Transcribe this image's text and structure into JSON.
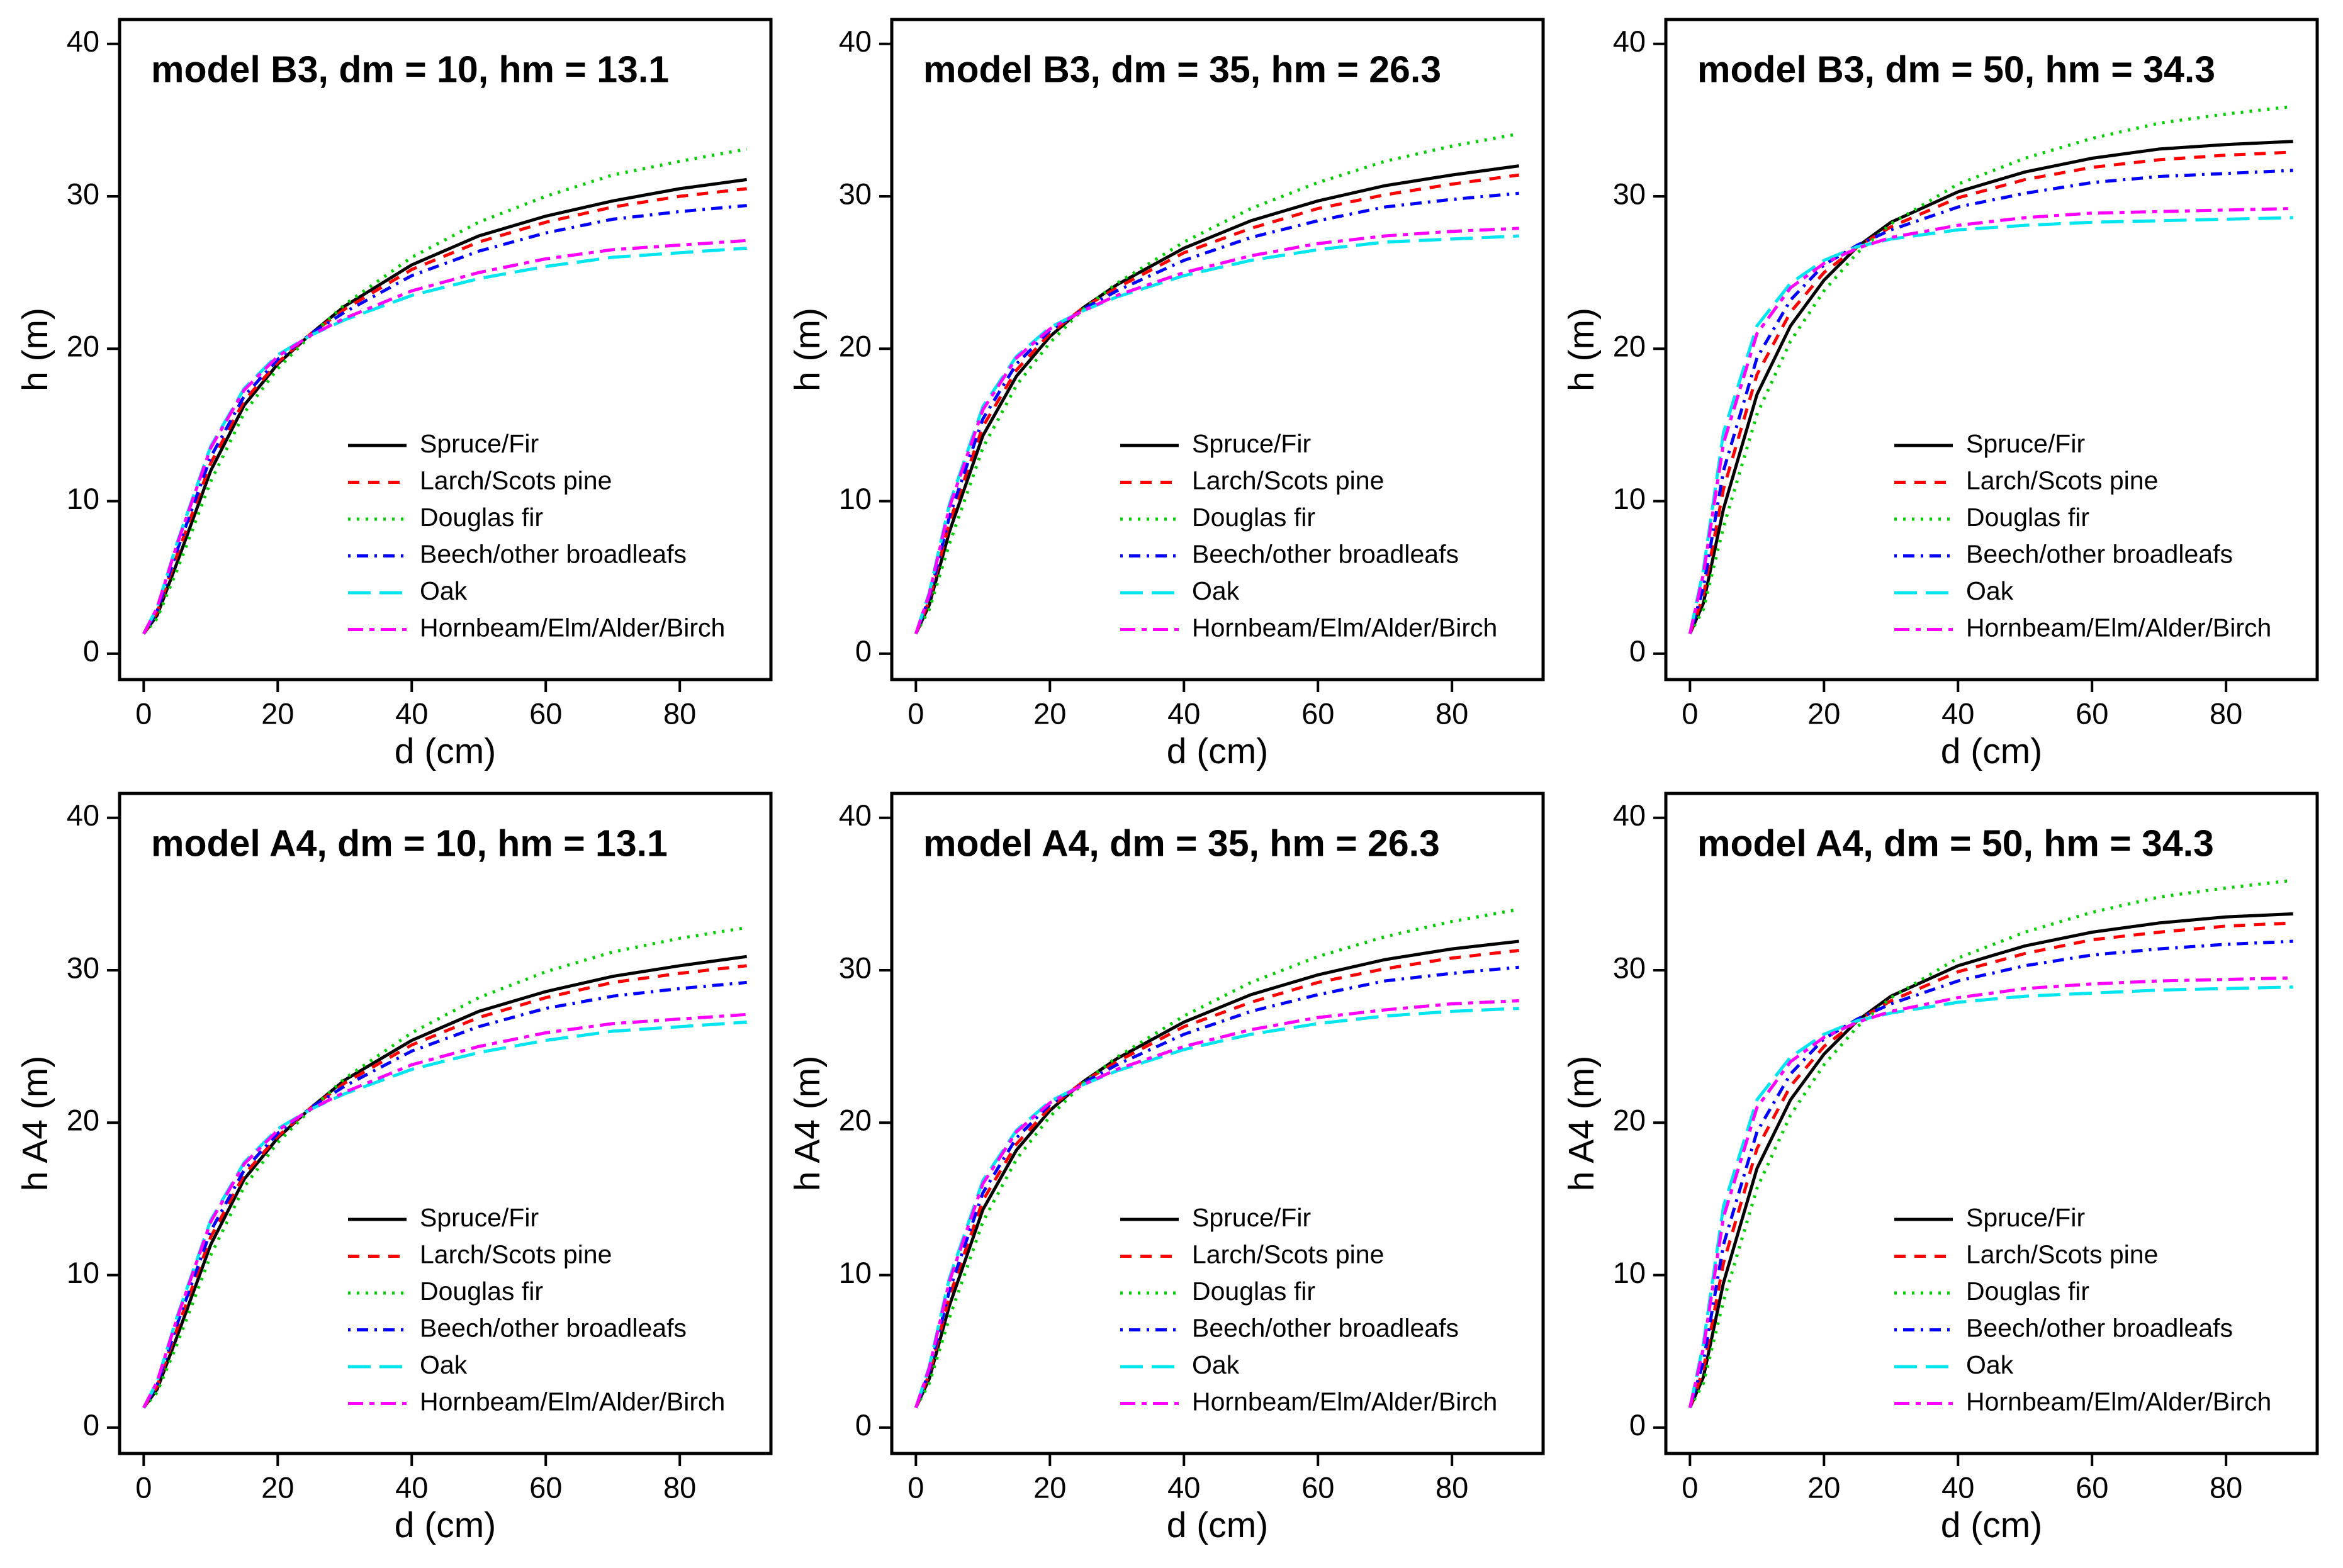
{
  "chart_data": [
    {
      "type": "line",
      "title": "model B3, dm = 10, hm = 13.1",
      "x_label": "d (cm)",
      "y_label": "h (m)",
      "x": [
        0,
        2,
        5,
        10,
        15,
        20,
        25,
        30,
        40,
        50,
        60,
        70,
        80,
        90
      ],
      "xlim": [
        -3.6,
        93.6
      ],
      "ylim": [
        -1.7,
        41.6
      ],
      "xticks": [
        0,
        20,
        40,
        60,
        80
      ],
      "yticks": [
        0,
        10,
        20,
        30,
        40
      ],
      "legend": "lower right",
      "series": [
        {
          "name": "Spruce/Fir",
          "color": "#000000",
          "dash": "solid",
          "values": [
            1.3,
            2.5,
            6,
            12,
            16.3,
            19.0,
            21.0,
            22.8,
            25.5,
            27.4,
            28.7,
            29.7,
            30.5,
            31.1
          ]
        },
        {
          "name": "Larch/Scots pine",
          "color": "#ff0000",
          "dash": "dashed",
          "values": [
            1.3,
            2.7,
            6.5,
            12.5,
            16.6,
            19.1,
            21.0,
            22.6,
            25.2,
            27.0,
            28.3,
            29.3,
            30.0,
            30.5
          ]
        },
        {
          "name": "Douglas fir",
          "color": "#00cd00",
          "dash": "dotted",
          "values": [
            1.3,
            2.3,
            5.5,
            11.3,
            15.8,
            18.7,
            20.9,
            22.9,
            26.0,
            28.3,
            30.0,
            31.4,
            32.3,
            33.1
          ]
        },
        {
          "name": "Beech/other broadleafs",
          "color": "#0000ff",
          "dash": "dotdash",
          "values": [
            1.3,
            2.8,
            6.8,
            12.9,
            16.9,
            19.3,
            21.0,
            22.4,
            24.8,
            26.4,
            27.6,
            28.5,
            29.0,
            29.4
          ]
        },
        {
          "name": "Oak",
          "color": "#00e5ee",
          "dash": "longdash",
          "values": [
            1.3,
            3.0,
            7.3,
            13.6,
            17.4,
            19.6,
            20.9,
            21.9,
            23.5,
            24.6,
            25.4,
            26.0,
            26.3,
            26.6
          ]
        },
        {
          "name": "Hornbeam/Elm/Alder/Birch",
          "color": "#ff00ff",
          "dash": "twodash",
          "values": [
            1.3,
            3.0,
            7.2,
            13.5,
            17.3,
            19.5,
            20.9,
            22.0,
            23.8,
            25.0,
            25.9,
            26.5,
            26.8,
            27.1
          ]
        }
      ]
    },
    {
      "type": "line",
      "title": "model B3, dm = 35, hm = 26.3",
      "x_label": "d (cm)",
      "y_label": "h (m)",
      "x": [
        0,
        2,
        5,
        10,
        15,
        20,
        25,
        30,
        40,
        50,
        60,
        70,
        80,
        90
      ],
      "xlim": [
        -3.6,
        93.6
      ],
      "ylim": [
        -1.7,
        41.6
      ],
      "xticks": [
        0,
        20,
        40,
        60,
        80
      ],
      "yticks": [
        0,
        10,
        20,
        30,
        40
      ],
      "legend": "lower right",
      "series": [
        {
          "name": "Spruce/Fir",
          "color": "#000000",
          "dash": "solid",
          "values": [
            1.3,
            3.2,
            8,
            14.3,
            18.2,
            20.8,
            22.7,
            24.2,
            26.6,
            28.4,
            29.7,
            30.7,
            31.4,
            32.0
          ]
        },
        {
          "name": "Larch/Scots pine",
          "color": "#ff0000",
          "dash": "dashed",
          "values": [
            1.3,
            3.5,
            8.6,
            14.9,
            18.6,
            21.0,
            22.7,
            24.0,
            26.3,
            27.9,
            29.2,
            30.1,
            30.8,
            31.4
          ]
        },
        {
          "name": "Douglas fir",
          "color": "#00cd00",
          "dash": "dotted",
          "values": [
            1.3,
            2.9,
            7.2,
            13.5,
            17.6,
            20.4,
            22.6,
            24.3,
            27.0,
            29.2,
            30.9,
            32.3,
            33.3,
            34.1
          ]
        },
        {
          "name": "Beech/other broadleafs",
          "color": "#0000ff",
          "dash": "dotdash",
          "values": [
            1.3,
            3.7,
            9.0,
            15.4,
            19.0,
            21.2,
            22.6,
            23.8,
            25.8,
            27.3,
            28.4,
            29.3,
            29.8,
            30.2
          ]
        },
        {
          "name": "Oak",
          "color": "#00e5ee",
          "dash": "longdash",
          "values": [
            1.3,
            4.0,
            9.8,
            16.2,
            19.5,
            21.4,
            22.5,
            23.4,
            24.8,
            25.8,
            26.5,
            27.0,
            27.2,
            27.4
          ]
        },
        {
          "name": "Hornbeam/Elm/Alder/Birch",
          "color": "#ff00ff",
          "dash": "twodash",
          "values": [
            1.3,
            3.9,
            9.6,
            16.0,
            19.4,
            21.3,
            22.5,
            23.5,
            25.0,
            26.1,
            26.9,
            27.4,
            27.7,
            27.9
          ]
        }
      ]
    },
    {
      "type": "line",
      "title": "model B3, dm = 50, hm = 34.3",
      "x_label": "d (cm)",
      "y_label": "h (m)",
      "x": [
        0,
        2,
        5,
        10,
        15,
        20,
        25,
        30,
        40,
        50,
        60,
        70,
        80,
        90
      ],
      "xlim": [
        -3.6,
        93.6
      ],
      "ylim": [
        -1.7,
        41.6
      ],
      "xticks": [
        0,
        20,
        40,
        60,
        80
      ],
      "yticks": [
        0,
        10,
        20,
        30,
        40
      ],
      "legend": "lower right",
      "series": [
        {
          "name": "Spruce/Fir",
          "color": "#000000",
          "dash": "solid",
          "values": [
            1.3,
            3.3,
            9.5,
            17.0,
            21.5,
            24.5,
            26.7,
            28.3,
            30.3,
            31.6,
            32.5,
            33.1,
            33.4,
            33.6
          ]
        },
        {
          "name": "Larch/Scots pine",
          "color": "#ff0000",
          "dash": "dashed",
          "values": [
            1.3,
            3.8,
            10.8,
            18.3,
            22.4,
            25.0,
            26.7,
            28.0,
            29.9,
            31.1,
            31.9,
            32.4,
            32.7,
            32.9
          ]
        },
        {
          "name": "Douglas fir",
          "color": "#00cd00",
          "dash": "dotted",
          "values": [
            1.3,
            2.9,
            8.3,
            15.7,
            20.5,
            23.8,
            26.3,
            28.2,
            30.8,
            32.5,
            33.8,
            34.8,
            35.4,
            35.9
          ]
        },
        {
          "name": "Beech/other broadleafs",
          "color": "#0000ff",
          "dash": "dotdash",
          "values": [
            1.3,
            4.3,
            12.0,
            19.4,
            23.2,
            25.5,
            26.8,
            27.8,
            29.3,
            30.2,
            30.9,
            31.3,
            31.5,
            31.7
          ]
        },
        {
          "name": "Oak",
          "color": "#00e5ee",
          "dash": "longdash",
          "values": [
            1.3,
            5.5,
            14.5,
            21.5,
            24.3,
            25.8,
            26.7,
            27.2,
            27.8,
            28.1,
            28.3,
            28.4,
            28.5,
            28.6
          ]
        },
        {
          "name": "Hornbeam/Elm/Alder/Birch",
          "color": "#ff00ff",
          "dash": "twodash",
          "values": [
            1.3,
            5.2,
            13.8,
            21.0,
            24.0,
            25.6,
            26.6,
            27.3,
            28.1,
            28.6,
            28.9,
            29.0,
            29.1,
            29.2
          ]
        }
      ]
    },
    {
      "type": "line",
      "title": "model A4, dm = 10, hm = 13.1",
      "x_label": "d (cm)",
      "y_label": "h A4 (m)",
      "x": [
        0,
        2,
        5,
        10,
        15,
        20,
        25,
        30,
        40,
        50,
        60,
        70,
        80,
        90
      ],
      "xlim": [
        -3.6,
        93.6
      ],
      "ylim": [
        -1.7,
        41.6
      ],
      "xticks": [
        0,
        20,
        40,
        60,
        80
      ],
      "yticks": [
        0,
        10,
        20,
        30,
        40
      ],
      "legend": "lower right",
      "series": [
        {
          "name": "Spruce/Fir",
          "color": "#000000",
          "dash": "solid",
          "values": [
            1.3,
            2.5,
            6,
            12,
            16.3,
            19.0,
            21.0,
            22.8,
            25.4,
            27.3,
            28.6,
            29.6,
            30.3,
            30.9
          ]
        },
        {
          "name": "Larch/Scots pine",
          "color": "#ff0000",
          "dash": "dashed",
          "values": [
            1.3,
            2.7,
            6.5,
            12.5,
            16.6,
            19.1,
            21.0,
            22.6,
            25.1,
            26.9,
            28.2,
            29.2,
            29.8,
            30.3
          ]
        },
        {
          "name": "Douglas fir",
          "color": "#00cd00",
          "dash": "dotted",
          "values": [
            1.3,
            2.3,
            5.5,
            11.3,
            15.8,
            18.7,
            20.9,
            22.9,
            25.9,
            28.2,
            29.9,
            31.2,
            32.1,
            32.8
          ]
        },
        {
          "name": "Beech/other broadleafs",
          "color": "#0000ff",
          "dash": "dotdash",
          "values": [
            1.3,
            2.8,
            6.8,
            12.9,
            16.9,
            19.3,
            21.0,
            22.4,
            24.7,
            26.3,
            27.5,
            28.3,
            28.8,
            29.2
          ]
        },
        {
          "name": "Oak",
          "color": "#00e5ee",
          "dash": "longdash",
          "values": [
            1.3,
            3.0,
            7.3,
            13.6,
            17.4,
            19.6,
            20.9,
            21.9,
            23.5,
            24.6,
            25.4,
            26.0,
            26.3,
            26.6
          ]
        },
        {
          "name": "Hornbeam/Elm/Alder/Birch",
          "color": "#ff00ff",
          "dash": "twodash",
          "values": [
            1.3,
            3.0,
            7.2,
            13.5,
            17.3,
            19.5,
            20.9,
            22.0,
            23.8,
            25.0,
            25.9,
            26.5,
            26.8,
            27.1
          ]
        }
      ]
    },
    {
      "type": "line",
      "title": "model A4, dm = 35, hm = 26.3",
      "x_label": "d (cm)",
      "y_label": "h A4 (m)",
      "x": [
        0,
        2,
        5,
        10,
        15,
        20,
        25,
        30,
        40,
        50,
        60,
        70,
        80,
        90
      ],
      "xlim": [
        -3.6,
        93.6
      ],
      "ylim": [
        -1.7,
        41.6
      ],
      "xticks": [
        0,
        20,
        40,
        60,
        80
      ],
      "yticks": [
        0,
        10,
        20,
        30,
        40
      ],
      "legend": "lower right",
      "series": [
        {
          "name": "Spruce/Fir",
          "color": "#000000",
          "dash": "solid",
          "values": [
            1.3,
            3.2,
            8,
            14.3,
            18.2,
            20.8,
            22.7,
            24.2,
            26.6,
            28.4,
            29.7,
            30.7,
            31.4,
            31.9
          ]
        },
        {
          "name": "Larch/Scots pine",
          "color": "#ff0000",
          "dash": "dashed",
          "values": [
            1.3,
            3.5,
            8.6,
            14.9,
            18.6,
            21.0,
            22.7,
            24.0,
            26.3,
            27.9,
            29.2,
            30.1,
            30.8,
            31.3
          ]
        },
        {
          "name": "Douglas fir",
          "color": "#00cd00",
          "dash": "dotted",
          "values": [
            1.3,
            2.9,
            7.2,
            13.5,
            17.6,
            20.4,
            22.6,
            24.3,
            27.0,
            29.2,
            30.9,
            32.2,
            33.2,
            34.0
          ]
        },
        {
          "name": "Beech/other broadleafs",
          "color": "#0000ff",
          "dash": "dotdash",
          "values": [
            1.3,
            3.7,
            9.0,
            15.4,
            19.0,
            21.2,
            22.6,
            23.8,
            25.8,
            27.3,
            28.4,
            29.3,
            29.8,
            30.2
          ]
        },
        {
          "name": "Oak",
          "color": "#00e5ee",
          "dash": "longdash",
          "values": [
            1.3,
            4.0,
            9.8,
            16.2,
            19.5,
            21.4,
            22.5,
            23.4,
            24.8,
            25.8,
            26.5,
            27.0,
            27.3,
            27.5
          ]
        },
        {
          "name": "Hornbeam/Elm/Alder/Birch",
          "color": "#ff00ff",
          "dash": "twodash",
          "values": [
            1.3,
            3.9,
            9.6,
            16.0,
            19.4,
            21.3,
            22.5,
            23.5,
            25.0,
            26.1,
            26.9,
            27.4,
            27.8,
            28.0
          ]
        }
      ]
    },
    {
      "type": "line",
      "title": "model A4, dm = 50, hm = 34.3",
      "x_label": "d (cm)",
      "y_label": "h A4 (m)",
      "x": [
        0,
        2,
        5,
        10,
        15,
        20,
        25,
        30,
        40,
        50,
        60,
        70,
        80,
        90
      ],
      "xlim": [
        -3.6,
        93.6
      ],
      "ylim": [
        -1.7,
        41.6
      ],
      "xticks": [
        0,
        20,
        40,
        60,
        80
      ],
      "yticks": [
        0,
        10,
        20,
        30,
        40
      ],
      "legend": "lower right",
      "series": [
        {
          "name": "Spruce/Fir",
          "color": "#000000",
          "dash": "solid",
          "values": [
            1.3,
            3.3,
            9.5,
            17.0,
            21.5,
            24.5,
            26.7,
            28.3,
            30.3,
            31.6,
            32.5,
            33.1,
            33.5,
            33.7
          ]
        },
        {
          "name": "Larch/Scots pine",
          "color": "#ff0000",
          "dash": "dashed",
          "values": [
            1.3,
            3.8,
            10.8,
            18.3,
            22.4,
            25.0,
            26.7,
            28.0,
            29.9,
            31.1,
            32.0,
            32.5,
            32.9,
            33.1
          ]
        },
        {
          "name": "Douglas fir",
          "color": "#00cd00",
          "dash": "dotted",
          "values": [
            1.3,
            2.9,
            8.3,
            15.7,
            20.5,
            23.8,
            26.3,
            28.2,
            30.8,
            32.5,
            33.8,
            34.8,
            35.4,
            35.9
          ]
        },
        {
          "name": "Beech/other broadleafs",
          "color": "#0000ff",
          "dash": "dotdash",
          "values": [
            1.3,
            4.3,
            12.0,
            19.4,
            23.2,
            25.5,
            26.8,
            27.8,
            29.3,
            30.3,
            31.0,
            31.4,
            31.7,
            31.9
          ]
        },
        {
          "name": "Oak",
          "color": "#00e5ee",
          "dash": "longdash",
          "values": [
            1.3,
            5.5,
            14.5,
            21.5,
            24.3,
            25.8,
            26.7,
            27.2,
            27.9,
            28.3,
            28.5,
            28.7,
            28.8,
            28.9
          ]
        },
        {
          "name": "Hornbeam/Elm/Alder/Birch",
          "color": "#ff00ff",
          "dash": "twodash",
          "values": [
            1.3,
            5.2,
            13.8,
            21.0,
            24.0,
            25.6,
            26.6,
            27.3,
            28.2,
            28.8,
            29.1,
            29.3,
            29.4,
            29.5
          ]
        }
      ]
    }
  ]
}
